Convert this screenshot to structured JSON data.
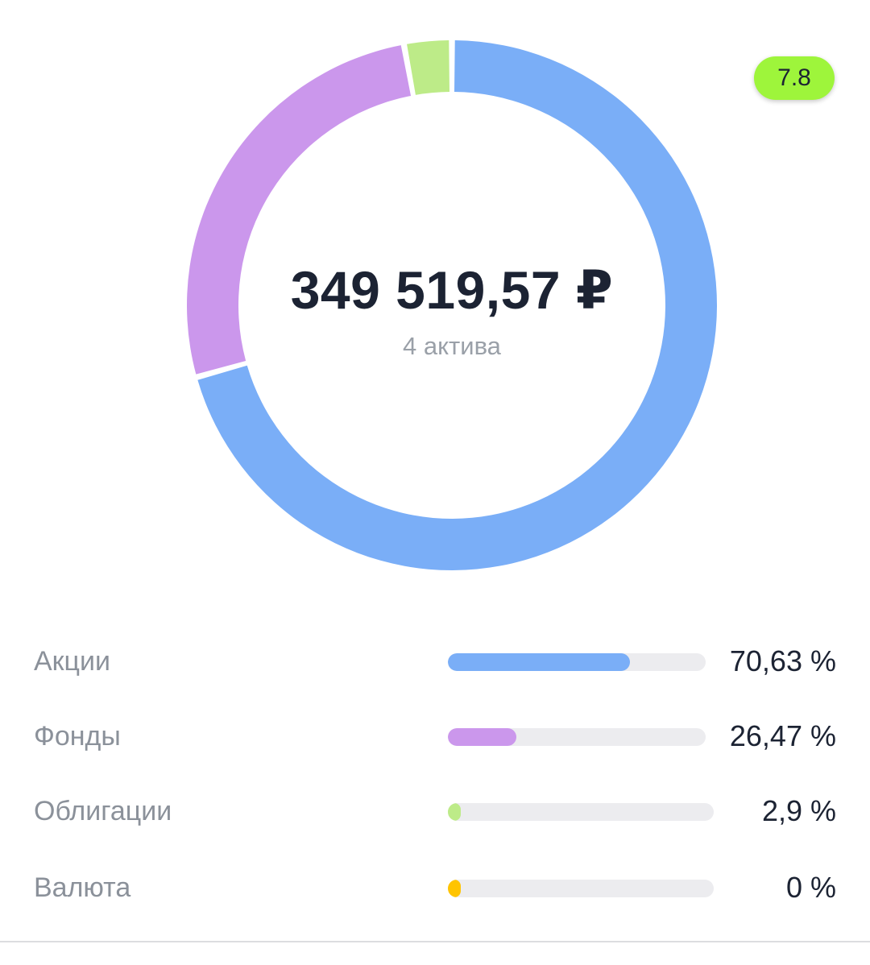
{
  "summary": {
    "total": "349 519,57 ₽",
    "assets_count": "4 актива",
    "score": "7.8"
  },
  "colors": {
    "stocks": "#7aaef7",
    "funds": "#cb97ec",
    "bonds": "#bdeb88",
    "currency": "#ffc400",
    "badge": "#9ef53b",
    "track": "#ececef"
  },
  "allocation": [
    {
      "label": "Акции",
      "value_text": "70,63 %",
      "percent": 70.63,
      "color_key": "stocks"
    },
    {
      "label": "Фонды",
      "value_text": "26,47 %",
      "percent": 26.47,
      "color_key": "funds"
    },
    {
      "label": "Облигации",
      "value_text": "2,9 %",
      "percent": 2.9,
      "color_key": "bonds"
    },
    {
      "label": "Валюта",
      "value_text": "0 %",
      "percent": 0,
      "color_key": "currency"
    }
  ]
}
